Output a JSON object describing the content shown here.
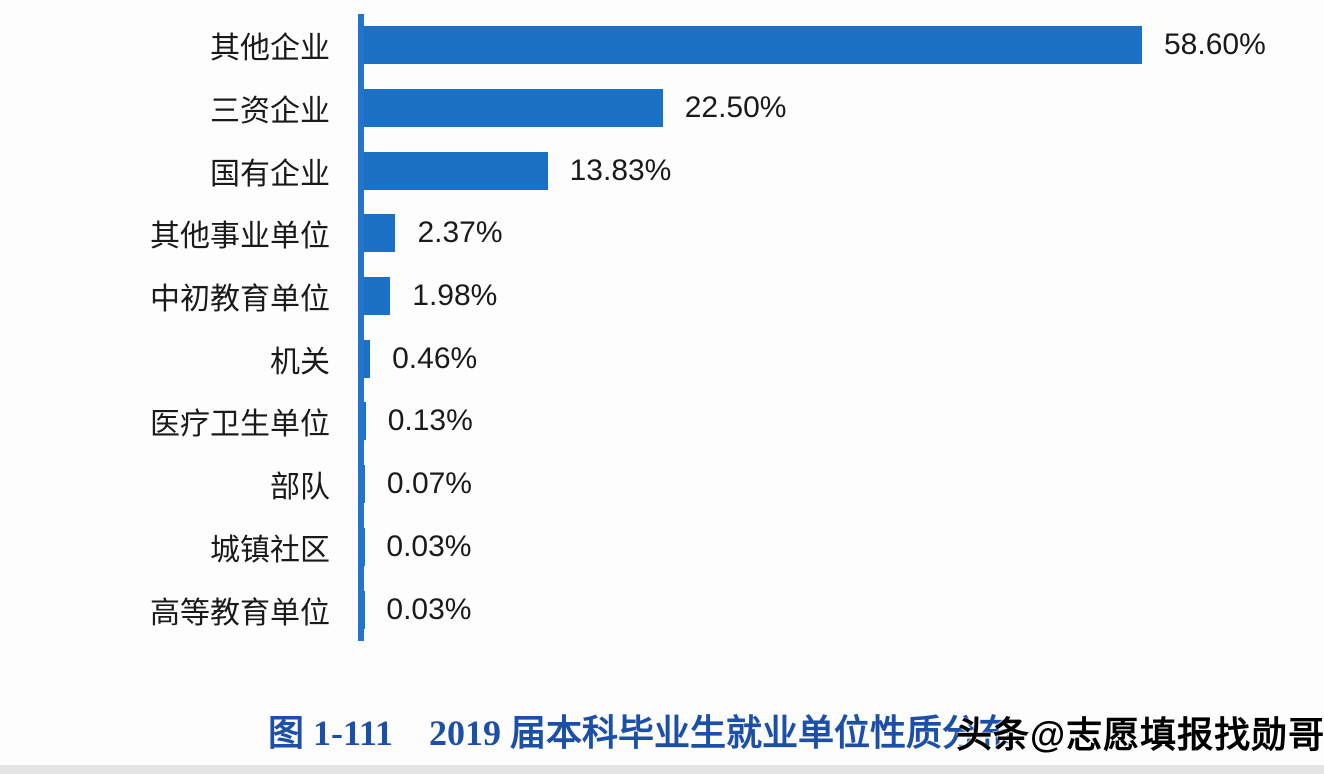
{
  "chart_data": {
    "type": "bar",
    "orientation": "horizontal",
    "title": "图 1-111　2019 届本科毕业生就业单位性质分布",
    "xlabel": "",
    "ylabel": "",
    "xlim": [
      0,
      60
    ],
    "grid": false,
    "bar_color": "#1B71C6",
    "axis_color": "#2274CC",
    "categories": [
      "其他企业",
      "三资企业",
      "国有企业",
      "其他事业单位",
      "中初教育单位",
      "机关",
      "医疗卫生单位",
      "部队",
      "城镇社区",
      "高等教育单位"
    ],
    "values": [
      58.6,
      22.5,
      13.83,
      2.37,
      1.98,
      0.46,
      0.13,
      0.07,
      0.03,
      0.03
    ],
    "rows": [
      {
        "label": "其他企业",
        "value": 58.6,
        "display": "58.60%"
      },
      {
        "label": "三资企业",
        "value": 22.5,
        "display": "22.50%"
      },
      {
        "label": "国有企业",
        "value": 13.83,
        "display": "13.83%"
      },
      {
        "label": "其他事业单位",
        "value": 2.37,
        "display": "2.37%"
      },
      {
        "label": "中初教育单位",
        "value": 1.98,
        "display": "1.98%"
      },
      {
        "label": "机关",
        "value": 0.46,
        "display": "0.46%"
      },
      {
        "label": "医疗卫生单位",
        "value": 0.13,
        "display": "0.13%"
      },
      {
        "label": "部队",
        "value": 0.07,
        "display": "0.07%"
      },
      {
        "label": "城镇社区",
        "value": 0.03,
        "display": "0.03%"
      },
      {
        "label": "高等教育单位",
        "value": 0.03,
        "display": "0.03%"
      }
    ]
  },
  "caption": {
    "figure_label": "图 1-111",
    "title": "2019 届本科毕业生就业单位性质分布"
  },
  "watermark": {
    "text": "头条@志愿填报找勋哥"
  }
}
